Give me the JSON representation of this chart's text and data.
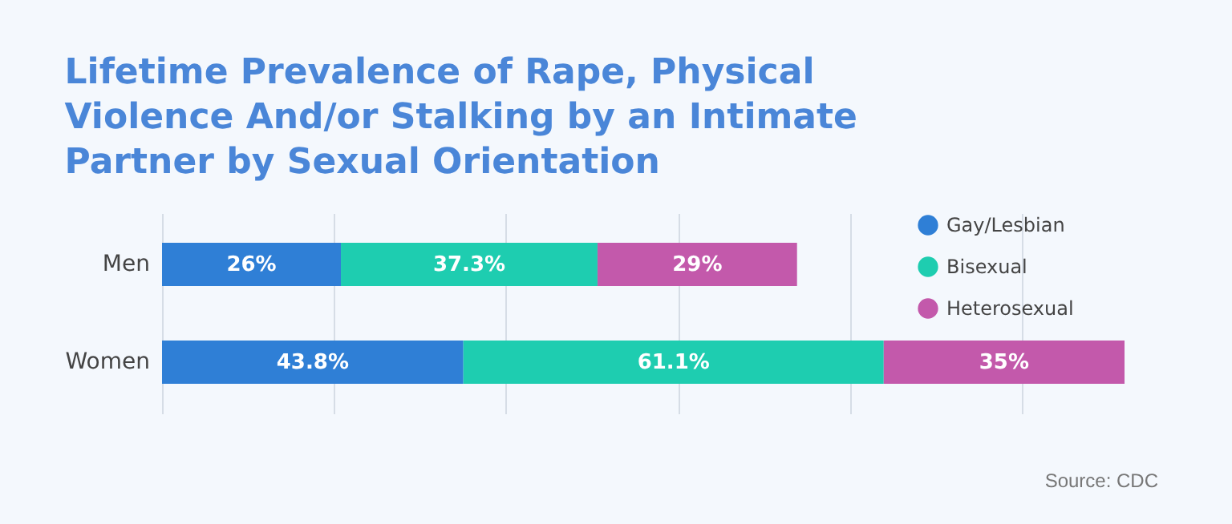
{
  "chart_data": {
    "type": "bar",
    "orientation": "horizontal",
    "stacked": true,
    "title": "Lifetime Prevalence of Rape, Physical Violence And/or Stalking by an Intimate Partner by Sexual Orientation",
    "categories": [
      "Men",
      "Women"
    ],
    "series": [
      {
        "name": "Gay/Lesbian",
        "color": "#2f7fd6",
        "values": [
          26,
          43.8
        ],
        "value_labels": [
          "26%",
          "43.8%"
        ]
      },
      {
        "name": "Bisexual",
        "color": "#1ecdb0",
        "values": [
          37.3,
          61.1
        ],
        "value_labels": [
          "37.3%",
          "61.1%"
        ]
      },
      {
        "name": "Heterosexual",
        "color": "#c359ab",
        "values": [
          29,
          35
        ],
        "value_labels": [
          "29%",
          "35%"
        ]
      }
    ],
    "xticks": [
      {
        "value": 0,
        "label": null
      },
      {
        "value": 25,
        "label": null
      },
      {
        "value": 50,
        "label": null
      },
      {
        "value": 75,
        "label": null
      },
      {
        "value": 100,
        "label": null
      },
      {
        "value": 125,
        "label": null
      }
    ],
    "tick_labels": "y",
    "grid": "x",
    "legend": "top right",
    "annotations": [
      "Source: CDC"
    ]
  }
}
